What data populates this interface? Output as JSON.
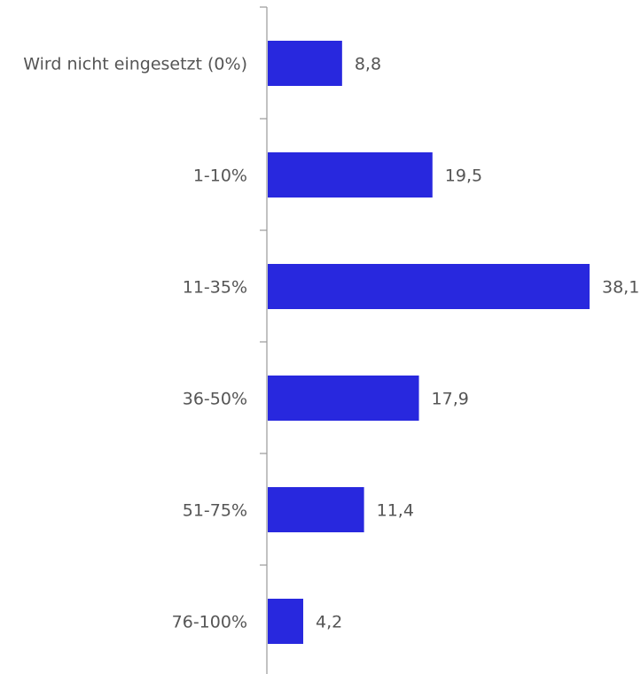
{
  "chart_data": {
    "type": "bar",
    "orientation": "horizontal",
    "categories": [
      "Wird nicht eingesetzt (0%)",
      "1-10%",
      "11-35%",
      "36-50%",
      "51-75%",
      "76-100%"
    ],
    "values": [
      8.8,
      19.5,
      38.1,
      17.9,
      11.4,
      4.2
    ],
    "value_labels": [
      "8,8",
      "19,5",
      "38,1",
      "17,9",
      "11,4",
      "4,2"
    ],
    "xlim": [
      0,
      38.1
    ],
    "title": "",
    "xlabel": "",
    "ylabel": "",
    "grid": false,
    "legend": "none",
    "bar_color": "#2828DE"
  }
}
